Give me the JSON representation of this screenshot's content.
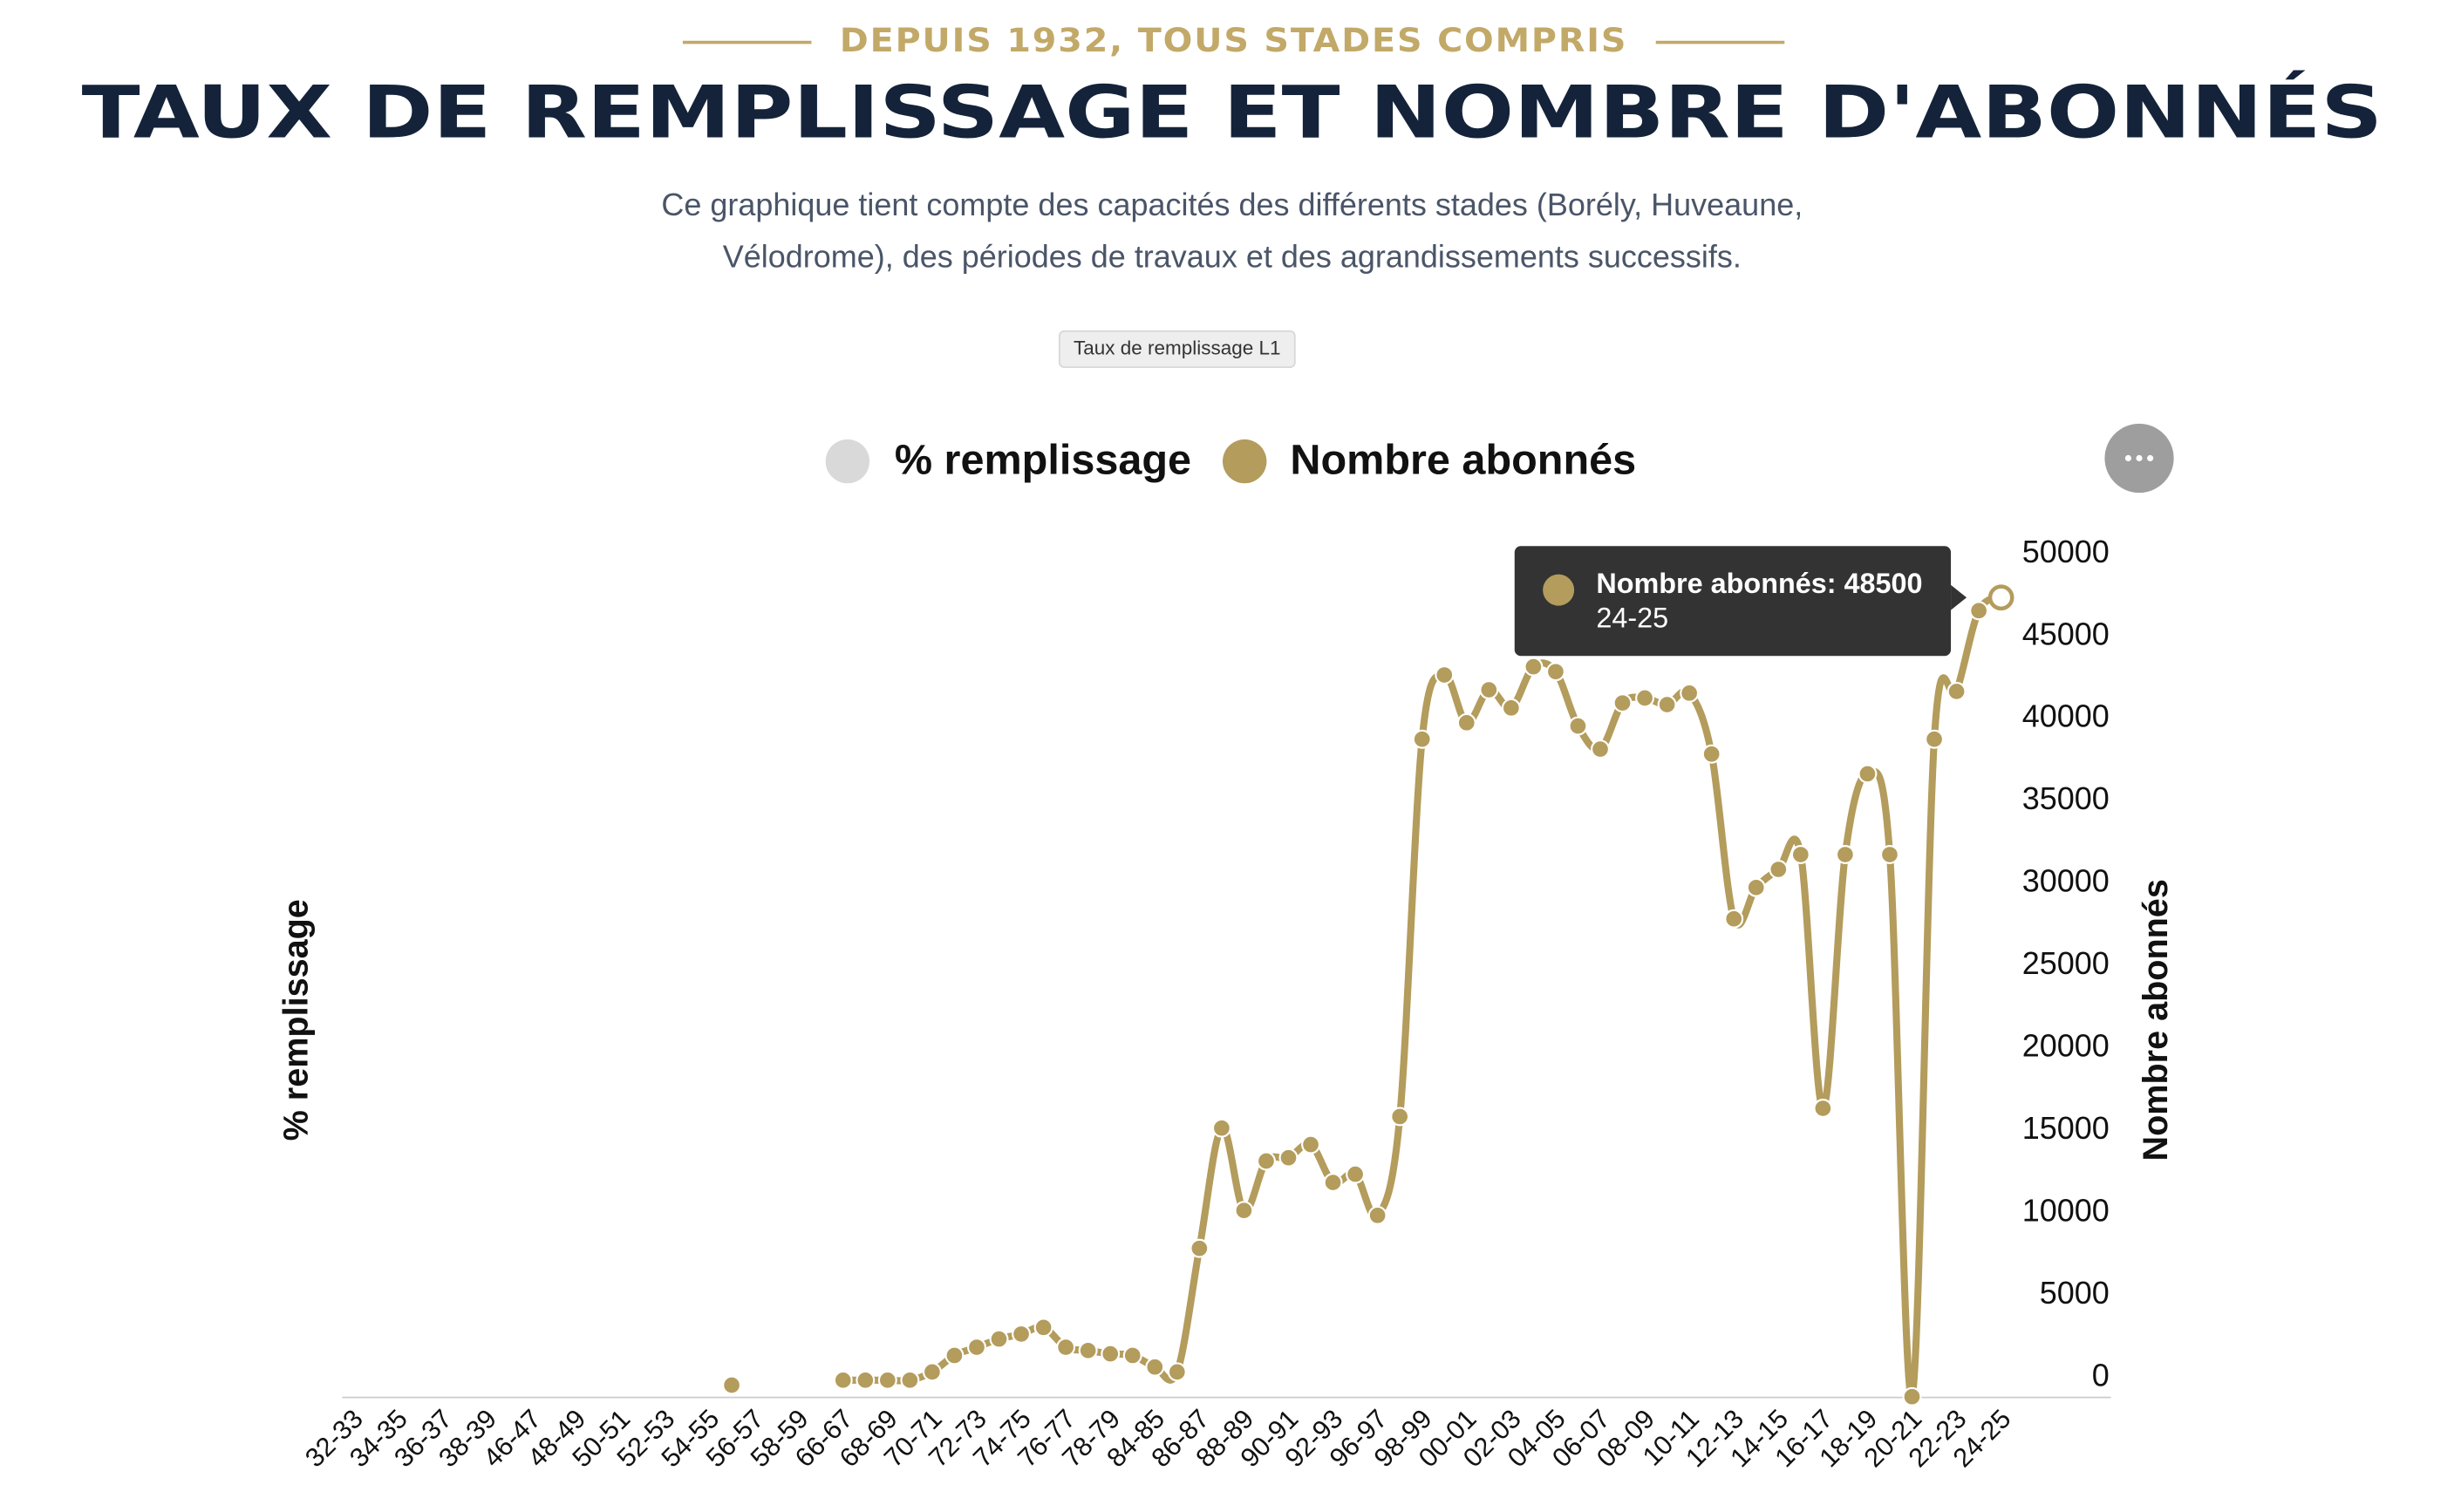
{
  "chart_data": {
    "type": "line",
    "kicker": "DEPUIS 1932, TOUS STADES COMPRIS",
    "title": "TAUX DE REMPLISSAGE ET NOMBRE D'ABONNÉS",
    "subtitle": [
      "Ce graphique tient compte des capacités des différents stades (Borély, Huveaune,",
      "Vélodrome), des périodes de travaux et des agrandissements successifs."
    ],
    "button": "Taux de remplissage L1",
    "y_label": "% remplissage",
    "y2_label": "Nombre abonnés",
    "categories": [
      "32-33",
      null,
      "34-35",
      null,
      "36-37",
      null,
      "38-39",
      null,
      "46-47",
      null,
      "48-49",
      null,
      "50-51",
      null,
      "52-53",
      null,
      "54-55",
      null,
      "56-57",
      null,
      "58-59",
      null,
      "66-67",
      null,
      "68-69",
      null,
      "70-71",
      null,
      "72-73",
      null,
      "74-75",
      null,
      "76-77",
      null,
      "78-79",
      null,
      "84-85",
      null,
      "86-87",
      null,
      "88-89",
      null,
      "90-91",
      null,
      "92-93",
      null,
      "96-97",
      null,
      "98-99",
      null,
      "00-01",
      null,
      "02-03",
      null,
      "04-05",
      null,
      "06-07",
      null,
      "08-09",
      null,
      "10-11",
      null,
      "12-13",
      null,
      "14-15",
      null,
      "16-17",
      null,
      "18-19",
      null,
      "20-21",
      null,
      "22-23",
      null,
      "24-25"
    ],
    "series": [
      {
        "name": "% remplissage",
        "color": "#d9d9d9",
        "hidden": true,
        "values": [
          null,
          null,
          null,
          null,
          null,
          null,
          null,
          null,
          null,
          null,
          null,
          null,
          null,
          null,
          null,
          null,
          null,
          null,
          null,
          null,
          null,
          null,
          null,
          null,
          null,
          null,
          null,
          null,
          null,
          null,
          null,
          null,
          null,
          null,
          null,
          null,
          null,
          null,
          null,
          null,
          null,
          null,
          null,
          null,
          null,
          null,
          null,
          null,
          null,
          null,
          null,
          null,
          null,
          null,
          null,
          null,
          null,
          null,
          null,
          null,
          null,
          null,
          null,
          null,
          null,
          null,
          null,
          null,
          null,
          null,
          null,
          null,
          null,
          null,
          null
        ]
      },
      {
        "name": "Nombre abonnés",
        "color": "#b39c5c",
        "axis": "y2",
        "values": [
          null,
          null,
          null,
          null,
          null,
          null,
          null,
          null,
          null,
          null,
          null,
          null,
          null,
          null,
          null,
          null,
          null,
          700,
          null,
          null,
          null,
          null,
          1000,
          1000,
          1000,
          1000,
          1500,
          2500,
          3000,
          3500,
          3800,
          4200,
          3000,
          2800,
          2600,
          2500,
          1800,
          1500,
          9000,
          16300,
          11300,
          14300,
          14500,
          15300,
          13000,
          13500,
          11000,
          17000,
          39900,
          43800,
          40900,
          42900,
          41800,
          44300,
          44000,
          40700,
          39300,
          42100,
          42400,
          42000,
          42700,
          39000,
          29000,
          30900,
          32000,
          32900,
          17500,
          32900,
          37800,
          32900,
          0,
          39900,
          42800,
          47700,
          48500
        ]
      }
    ],
    "y2lim": [
      0,
      50000
    ],
    "y2ticks": [
      0,
      5000,
      10000,
      15000,
      20000,
      25000,
      30000,
      35000,
      40000,
      45000,
      50000
    ],
    "grid": false,
    "legend": "top",
    "tooltip": {
      "title": "Nombre abonnés: 48500",
      "category": "24-25",
      "series": 1,
      "index": 74
    }
  }
}
